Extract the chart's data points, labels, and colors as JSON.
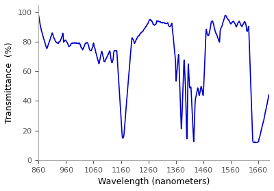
{
  "title": "",
  "xlabel": "Wavelength (nanometers)",
  "ylabel": "Transmittance  (%)",
  "xlim": [
    860,
    1700
  ],
  "ylim": [
    0,
    105
  ],
  "xticks": [
    860,
    960,
    1060,
    1160,
    1260,
    1360,
    1460,
    1560,
    1660
  ],
  "yticks": [
    0,
    20,
    40,
    60,
    80,
    100
  ],
  "line_color": "#0000cc",
  "linewidth": 1.2,
  "background_color": "#ffffff",
  "figsize": [
    4.0,
    2.79
  ],
  "dpi": 100
}
